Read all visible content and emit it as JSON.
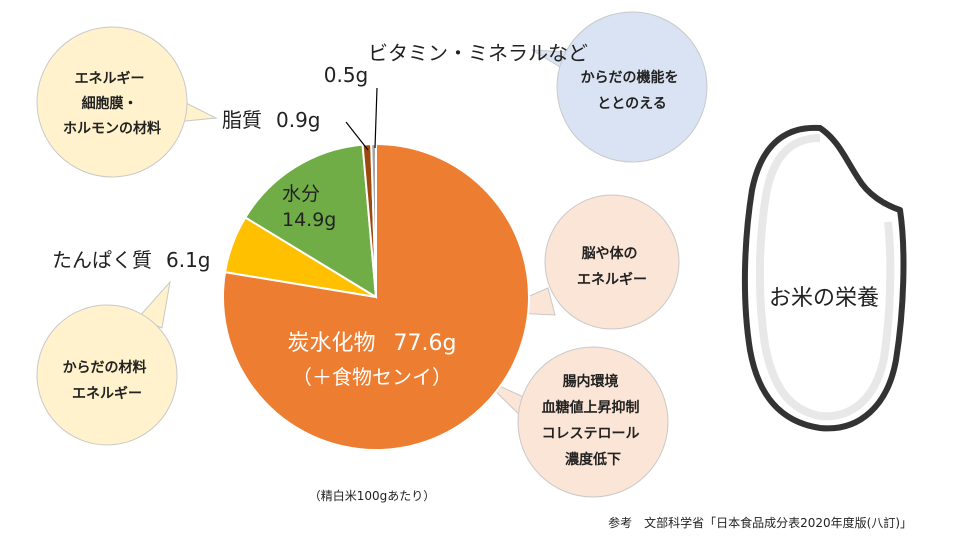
{
  "chart_data": {
    "type": "pie",
    "title": "お米の栄養",
    "note": "（精白米100gあたり）",
    "source": "参考　文部科学省「日本食品成分表2020年度版(八訂)」",
    "slices": [
      {
        "name": "炭水化物",
        "value": 77.6,
        "value_label": "77.6g",
        "sub_label": "（＋食物センイ）",
        "color": "#ED7D31"
      },
      {
        "name": "たんぱく質",
        "value": 6.1,
        "value_label": "6.1g",
        "color": "#FFC000"
      },
      {
        "name": "水分",
        "value": 14.9,
        "value_label": "14.9g",
        "color": "#70AD47"
      },
      {
        "name": "脂質",
        "value": 0.9,
        "value_label": "0.9g",
        "color": "#9E480E"
      },
      {
        "name": "ビタミン・ミネラルなど",
        "value": 0.5,
        "value_label": "0.5g",
        "color": "#A5A5A5"
      }
    ]
  },
  "bubbles": {
    "fat": [
      "エネルギー",
      "細胞膜・",
      "ホルモンの材料"
    ],
    "vitamin": [
      "からだの機能を",
      "ととのえる"
    ],
    "carb": [
      "脳や体の",
      "エネルギー"
    ],
    "protein": [
      "からだの材料",
      "エネルギー"
    ],
    "fiber": [
      "腸内環境",
      "血糖値上昇抑制",
      "コレステロール",
      "濃度低下"
    ]
  },
  "colors": {
    "yellow_bubble": "#FFF2CC",
    "blue_bubble": "#DAE3F3",
    "peach_bubble": "#FBE5D6",
    "bubble_border": "#C9C9C9"
  }
}
